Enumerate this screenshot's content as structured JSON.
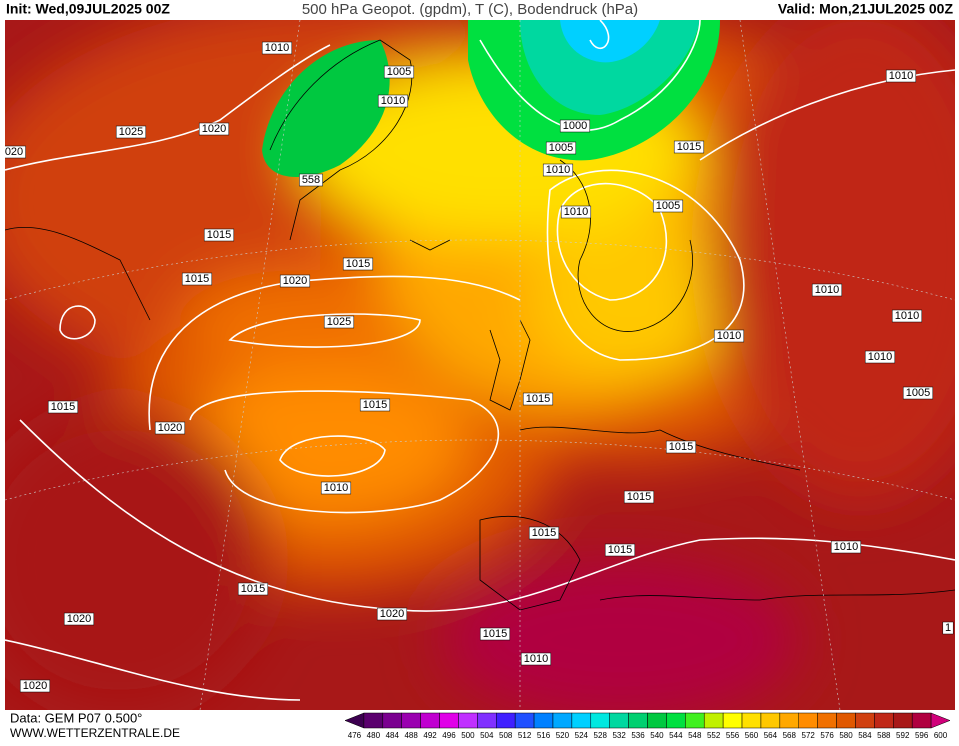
{
  "header": {
    "init": "Init: Wed,09JUL2025 00Z",
    "title": "500 hPa Geopot. (gpdm), T (C), Bodendruck (hPa)",
    "valid": "Valid: Mon,21JUL2025 00Z"
  },
  "footer": {
    "source": "Data: GEM P07 0.500°",
    "site": "WWW.WETTERZENTRALE.DE"
  },
  "isobar_labels": [
    "1010",
    "1005",
    "1010",
    "1025",
    "1020",
    "020",
    "558",
    "1000",
    "1005",
    "1010",
    "1015",
    "1010",
    "1010",
    "1005",
    "1015",
    "1015",
    "1015",
    "1020",
    "1025",
    "1010",
    "1010",
    "1010",
    "1010",
    "1005",
    "1015",
    "1020",
    "1015",
    "1015",
    "1015",
    "1010",
    "1015",
    "1015",
    "1015",
    "1010",
    "1015",
    "1020",
    "1020",
    "1015",
    "1010",
    "1020",
    "1"
  ],
  "colorbar": {
    "levels": [
      476,
      480,
      484,
      488,
      492,
      496,
      500,
      504,
      508,
      512,
      516,
      520,
      524,
      528,
      532,
      536,
      540,
      544,
      548,
      552,
      556,
      560,
      564,
      568,
      572,
      576,
      580,
      584,
      588,
      592,
      596,
      600
    ],
    "colors": [
      "#3c0050",
      "#5a006e",
      "#7a0090",
      "#9a00b0",
      "#c000d0",
      "#e000e8",
      "#c030ff",
      "#8030ff",
      "#4020ff",
      "#2050ff",
      "#0080ff",
      "#00a8ff",
      "#00d0ff",
      "#00e8e0",
      "#00d8a0",
      "#00d070",
      "#00c840",
      "#00e040",
      "#40f020",
      "#c0f000",
      "#ffff00",
      "#ffe000",
      "#ffc800",
      "#ffa800",
      "#ff8c00",
      "#f07000",
      "#e05800",
      "#d04010",
      "#c02818",
      "#a81818",
      "#b00040",
      "#d0007a"
    ]
  }
}
